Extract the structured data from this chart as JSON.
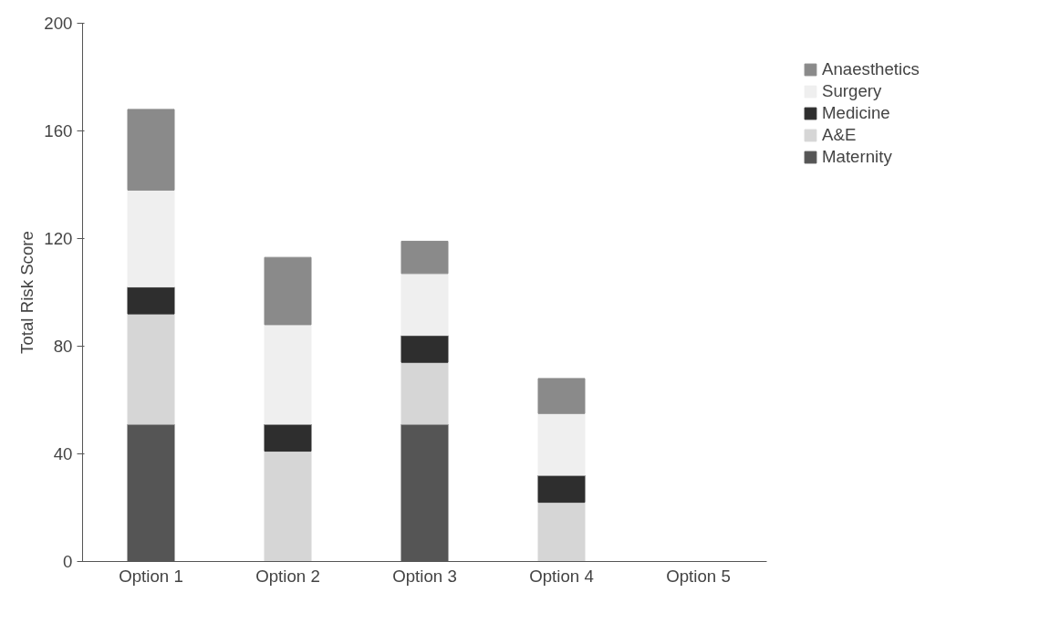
{
  "chart_data": {
    "type": "bar",
    "stacked": true,
    "ylabel": "Total Risk Score",
    "categories": [
      "Option 1",
      "Option 2",
      "Option 3",
      "Option 4",
      "Option 5"
    ],
    "series": [
      {
        "name": "Maternity",
        "color": "#555555",
        "values": [
          51,
          0,
          51,
          0,
          0
        ]
      },
      {
        "name": "A&E",
        "color": "#d6d6d6",
        "values": [
          41,
          41,
          23,
          22,
          0
        ]
      },
      {
        "name": "Medicine",
        "color": "#2e2e2e",
        "values": [
          10,
          10,
          10,
          10,
          0
        ]
      },
      {
        "name": "Surgery",
        "color": "#efefef",
        "values": [
          36,
          37,
          23,
          23,
          0
        ]
      },
      {
        "name": "Anaesthetics",
        "color": "#8a8a8a",
        "values": [
          30,
          25,
          12,
          13,
          0
        ]
      }
    ],
    "ylim": [
      0,
      200
    ],
    "yticks": [
      0,
      40,
      80,
      120,
      160,
      200
    ],
    "grid": false,
    "legend": "right"
  }
}
